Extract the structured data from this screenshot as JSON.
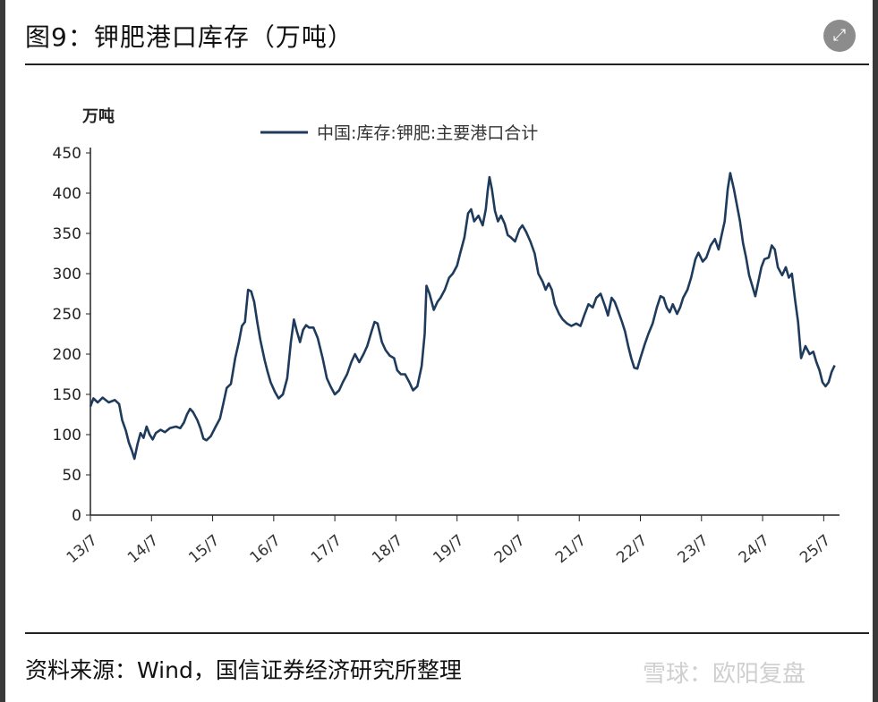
{
  "header": {
    "title": "图9：钾肥港口库存（万吨）",
    "expand_icon": "expand-icon"
  },
  "chart_data": {
    "type": "line",
    "ylabel": "万吨",
    "ylim": [
      0,
      450
    ],
    "yticks": [
      0,
      50,
      100,
      150,
      200,
      250,
      300,
      350,
      400,
      450
    ],
    "xticks": [
      "13/7",
      "14/7",
      "15/7",
      "16/7",
      "17/7",
      "18/7",
      "19/7",
      "20/7",
      "21/7",
      "22/7",
      "23/7",
      "24/7",
      "25/7"
    ],
    "xlim": [
      2013.5,
      2025.7
    ],
    "legend_position": "top-center",
    "series": [
      {
        "name": "中国:库存:钾肥:主要港口合计",
        "color": "#1f3b5c",
        "points": [
          [
            2013.5,
            135
          ],
          [
            2013.55,
            145
          ],
          [
            2013.62,
            140
          ],
          [
            2013.7,
            146
          ],
          [
            2013.8,
            140
          ],
          [
            2013.9,
            143
          ],
          [
            2013.97,
            138
          ],
          [
            2014.02,
            118
          ],
          [
            2014.08,
            105
          ],
          [
            2014.13,
            90
          ],
          [
            2014.18,
            80
          ],
          [
            2014.22,
            70
          ],
          [
            2014.27,
            88
          ],
          [
            2014.32,
            102
          ],
          [
            2014.37,
            96
          ],
          [
            2014.42,
            110
          ],
          [
            2014.47,
            100
          ],
          [
            2014.52,
            94
          ],
          [
            2014.57,
            102
          ],
          [
            2014.65,
            106
          ],
          [
            2014.72,
            103
          ],
          [
            2014.8,
            108
          ],
          [
            2014.9,
            110
          ],
          [
            2014.97,
            108
          ],
          [
            2015.03,
            115
          ],
          [
            2015.08,
            125
          ],
          [
            2015.13,
            132
          ],
          [
            2015.18,
            128
          ],
          [
            2015.25,
            118
          ],
          [
            2015.3,
            108
          ],
          [
            2015.35,
            95
          ],
          [
            2015.4,
            93
          ],
          [
            2015.47,
            98
          ],
          [
            2015.55,
            110
          ],
          [
            2015.62,
            120
          ],
          [
            2015.68,
            140
          ],
          [
            2015.73,
            158
          ],
          [
            2015.8,
            163
          ],
          [
            2015.87,
            195
          ],
          [
            2015.93,
            215
          ],
          [
            2015.98,
            235
          ],
          [
            2016.03,
            240
          ],
          [
            2016.08,
            280
          ],
          [
            2016.13,
            278
          ],
          [
            2016.18,
            265
          ],
          [
            2016.23,
            240
          ],
          [
            2016.28,
            218
          ],
          [
            2016.35,
            193
          ],
          [
            2016.4,
            178
          ],
          [
            2016.45,
            165
          ],
          [
            2016.52,
            153
          ],
          [
            2016.58,
            145
          ],
          [
            2016.65,
            150
          ],
          [
            2016.72,
            170
          ],
          [
            2016.78,
            215
          ],
          [
            2016.83,
            243
          ],
          [
            2016.88,
            228
          ],
          [
            2016.93,
            215
          ],
          [
            2016.98,
            230
          ],
          [
            2017.03,
            236
          ],
          [
            2017.08,
            233
          ],
          [
            2017.15,
            233
          ],
          [
            2017.22,
            220
          ],
          [
            2017.3,
            195
          ],
          [
            2017.37,
            170
          ],
          [
            2017.43,
            160
          ],
          [
            2017.5,
            150
          ],
          [
            2017.57,
            155
          ],
          [
            2017.63,
            165
          ],
          [
            2017.7,
            175
          ],
          [
            2017.77,
            190
          ],
          [
            2017.83,
            200
          ],
          [
            2017.9,
            190
          ],
          [
            2017.97,
            200
          ],
          [
            2018.03,
            210
          ],
          [
            2018.1,
            228
          ],
          [
            2018.15,
            240
          ],
          [
            2018.2,
            238
          ],
          [
            2018.27,
            215
          ],
          [
            2018.33,
            205
          ],
          [
            2018.4,
            198
          ],
          [
            2018.47,
            195
          ],
          [
            2018.52,
            180
          ],
          [
            2018.58,
            175
          ],
          [
            2018.65,
            175
          ],
          [
            2018.72,
            165
          ],
          [
            2018.78,
            155
          ],
          [
            2018.85,
            160
          ],
          [
            2018.92,
            185
          ],
          [
            2018.97,
            225
          ],
          [
            2019.0,
            285
          ],
          [
            2019.05,
            275
          ],
          [
            2019.12,
            255
          ],
          [
            2019.18,
            265
          ],
          [
            2019.23,
            270
          ],
          [
            2019.3,
            280
          ],
          [
            2019.37,
            295
          ],
          [
            2019.43,
            300
          ],
          [
            2019.5,
            310
          ],
          [
            2019.55,
            325
          ],
          [
            2019.62,
            345
          ],
          [
            2019.68,
            375
          ],
          [
            2019.73,
            380
          ],
          [
            2019.78,
            365
          ],
          [
            2019.85,
            372
          ],
          [
            2019.92,
            360
          ],
          [
            2019.97,
            380
          ],
          [
            2020.0,
            402
          ],
          [
            2020.03,
            420
          ],
          [
            2020.07,
            405
          ],
          [
            2020.12,
            378
          ],
          [
            2020.17,
            365
          ],
          [
            2020.22,
            372
          ],
          [
            2020.28,
            362
          ],
          [
            2020.33,
            348
          ],
          [
            2020.38,
            345
          ],
          [
            2020.45,
            340
          ],
          [
            2020.52,
            355
          ],
          [
            2020.57,
            360
          ],
          [
            2020.63,
            352
          ],
          [
            2020.7,
            340
          ],
          [
            2020.77,
            325
          ],
          [
            2020.83,
            300
          ],
          [
            2020.9,
            290
          ],
          [
            2020.95,
            280
          ],
          [
            2021.0,
            288
          ],
          [
            2021.05,
            280
          ],
          [
            2021.1,
            262
          ],
          [
            2021.17,
            250
          ],
          [
            2021.23,
            243
          ],
          [
            2021.3,
            238
          ],
          [
            2021.37,
            235
          ],
          [
            2021.45,
            238
          ],
          [
            2021.52,
            235
          ],
          [
            2021.58,
            248
          ],
          [
            2021.65,
            262
          ],
          [
            2021.72,
            258
          ],
          [
            2021.78,
            270
          ],
          [
            2021.85,
            275
          ],
          [
            2021.92,
            260
          ],
          [
            2021.97,
            248
          ],
          [
            2022.03,
            270
          ],
          [
            2022.08,
            265
          ],
          [
            2022.13,
            255
          ],
          [
            2022.2,
            240
          ],
          [
            2022.25,
            228
          ],
          [
            2022.3,
            210
          ],
          [
            2022.35,
            195
          ],
          [
            2022.4,
            183
          ],
          [
            2022.45,
            182
          ],
          [
            2022.5,
            195
          ],
          [
            2022.57,
            212
          ],
          [
            2022.63,
            225
          ],
          [
            2022.7,
            238
          ],
          [
            2022.77,
            258
          ],
          [
            2022.83,
            272
          ],
          [
            2022.88,
            270
          ],
          [
            2022.93,
            258
          ],
          [
            2022.98,
            252
          ],
          [
            2023.03,
            262
          ],
          [
            2023.1,
            250
          ],
          [
            2023.15,
            258
          ],
          [
            2023.2,
            270
          ],
          [
            2023.27,
            280
          ],
          [
            2023.33,
            295
          ],
          [
            2023.4,
            318
          ],
          [
            2023.45,
            326
          ],
          [
            2023.52,
            315
          ],
          [
            2023.58,
            320
          ],
          [
            2023.65,
            335
          ],
          [
            2023.72,
            343
          ],
          [
            2023.78,
            330
          ],
          [
            2023.83,
            348
          ],
          [
            2023.88,
            365
          ],
          [
            2023.93,
            405
          ],
          [
            2023.97,
            425
          ],
          [
            2024.03,
            405
          ],
          [
            2024.08,
            385
          ],
          [
            2024.13,
            365
          ],
          [
            2024.18,
            338
          ],
          [
            2024.23,
            320
          ],
          [
            2024.28,
            298
          ],
          [
            2024.33,
            285
          ],
          [
            2024.38,
            272
          ],
          [
            2024.43,
            290
          ],
          [
            2024.48,
            308
          ],
          [
            2024.53,
            318
          ],
          [
            2024.6,
            320
          ],
          [
            2024.65,
            335
          ],
          [
            2024.7,
            330
          ],
          [
            2024.75,
            308
          ],
          [
            2024.82,
            298
          ],
          [
            2024.88,
            308
          ],
          [
            2024.93,
            295
          ],
          [
            2024.98,
            300
          ],
          [
            2025.03,
            268
          ],
          [
            2025.08,
            240
          ],
          [
            2025.13,
            195
          ],
          [
            2025.2,
            210
          ],
          [
            2025.27,
            200
          ],
          [
            2025.33,
            203
          ],
          [
            2025.38,
            190
          ],
          [
            2025.43,
            180
          ],
          [
            2025.48,
            165
          ],
          [
            2025.53,
            160
          ],
          [
            2025.58,
            165
          ],
          [
            2025.63,
            178
          ],
          [
            2025.68,
            186
          ]
        ]
      }
    ]
  },
  "footer": {
    "source": "资料来源：Wind，国信证券经济研究所整理",
    "watermark": "雪球：欧阳复盘"
  }
}
